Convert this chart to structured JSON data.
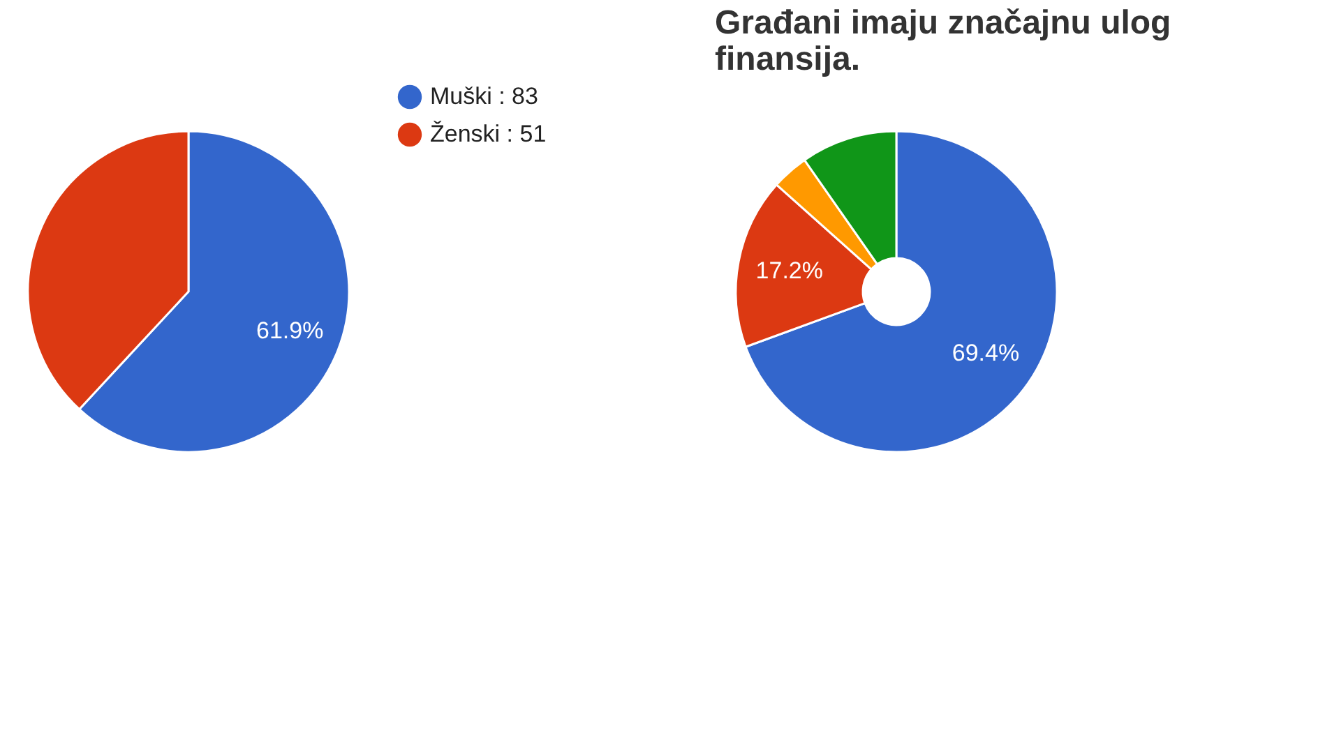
{
  "chart_data": [
    {
      "type": "pie",
      "categories": [
        "Muški : 83",
        "Ženski : 51"
      ],
      "values": [
        61.9,
        38.1
      ],
      "colors": [
        "#3366cc",
        "#dc3912"
      ],
      "value_labels": [
        "61.9%",
        null
      ],
      "legend": "right"
    },
    {
      "type": "donut",
      "title": "Građani imaju značajnu ulog\nfinansija.",
      "categories": [
        null,
        null,
        null,
        null
      ],
      "values": [
        69.4,
        17.2,
        3.7,
        9.7
      ],
      "colors": [
        "#3366cc",
        "#dc3912",
        "#ff9900",
        "#109618"
      ],
      "value_labels": [
        "69.4%",
        "17.2%",
        null,
        null
      ],
      "legend": false
    }
  ]
}
